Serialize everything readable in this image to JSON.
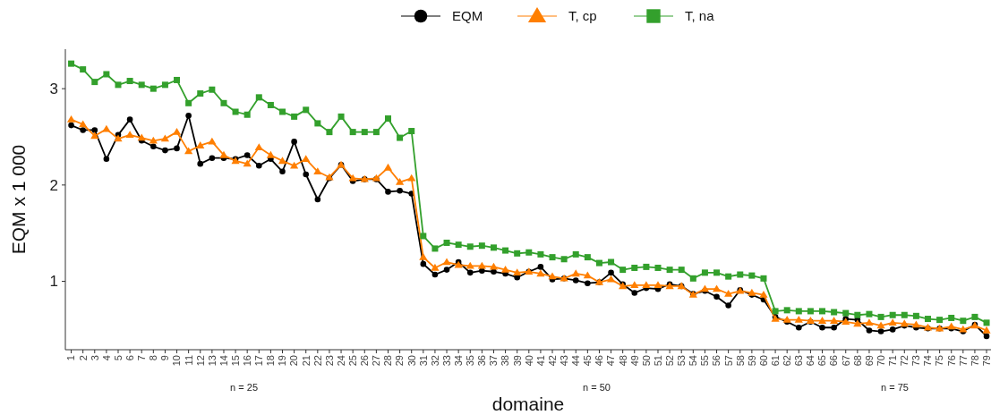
{
  "chart_data": {
    "type": "line",
    "xlabel": "domaine",
    "ylabel": "EQM x 1 000",
    "categories": [
      "1",
      "2",
      "3",
      "4",
      "5",
      "6",
      "7",
      "8",
      "9",
      "10",
      "11",
      "12",
      "13",
      "14",
      "15",
      "16",
      "17",
      "18",
      "19",
      "20",
      "21",
      "22",
      "23",
      "24",
      "25",
      "26",
      "27",
      "28",
      "29",
      "30",
      "31",
      "32",
      "33",
      "34",
      "35",
      "36",
      "37",
      "38",
      "39",
      "40",
      "41",
      "42",
      "43",
      "44",
      "45",
      "46",
      "47",
      "48",
      "49",
      "50",
      "51",
      "52",
      "53",
      "54",
      "55",
      "56",
      "57",
      "58",
      "59",
      "60",
      "61",
      "62",
      "63",
      "64",
      "65",
      "66",
      "67",
      "68",
      "69",
      "70",
      "71",
      "72",
      "73",
      "74",
      "75",
      "76",
      "77",
      "78",
      "79"
    ],
    "series": [
      {
        "name": "EQM",
        "color": "#000000",
        "marker": "circle",
        "values": [
          2.62,
          2.57,
          2.57,
          2.27,
          2.52,
          2.68,
          2.46,
          2.4,
          2.36,
          2.38,
          2.72,
          2.22,
          2.28,
          2.28,
          2.27,
          2.31,
          2.2,
          2.27,
          2.14,
          2.45,
          2.11,
          1.85,
          2.07,
          2.21,
          2.04,
          2.06,
          2.06,
          1.93,
          1.94,
          1.91,
          1.18,
          1.07,
          1.12,
          1.2,
          1.09,
          1.11,
          1.1,
          1.08,
          1.04,
          1.1,
          1.15,
          1.02,
          1.03,
          1.01,
          0.98,
          0.99,
          1.09,
          0.97,
          0.88,
          0.93,
          0.92,
          0.97,
          0.95,
          0.87,
          0.9,
          0.84,
          0.75,
          0.91,
          0.86,
          0.81,
          0.63,
          0.58,
          0.52,
          0.58,
          0.52,
          0.52,
          0.61,
          0.6,
          0.49,
          0.48,
          0.5,
          0.54,
          0.52,
          0.51,
          0.51,
          0.51,
          0.48,
          0.55,
          0.43
        ]
      },
      {
        "name": "T, cp",
        "color": "#ff7f00",
        "marker": "triangle",
        "values": [
          2.68,
          2.63,
          2.51,
          2.58,
          2.48,
          2.52,
          2.49,
          2.46,
          2.48,
          2.55,
          2.35,
          2.41,
          2.45,
          2.31,
          2.25,
          2.22,
          2.39,
          2.31,
          2.25,
          2.2,
          2.27,
          2.14,
          2.08,
          2.21,
          2.07,
          2.06,
          2.07,
          2.18,
          2.03,
          2.07,
          1.25,
          1.14,
          1.2,
          1.17,
          1.16,
          1.16,
          1.15,
          1.12,
          1.09,
          1.1,
          1.08,
          1.05,
          1.03,
          1.08,
          1.06,
          0.99,
          1.02,
          0.95,
          0.96,
          0.96,
          0.96,
          0.95,
          0.95,
          0.86,
          0.92,
          0.92,
          0.87,
          0.9,
          0.88,
          0.86,
          0.61,
          0.6,
          0.6,
          0.59,
          0.59,
          0.59,
          0.58,
          0.56,
          0.57,
          0.54,
          0.57,
          0.56,
          0.55,
          0.52,
          0.51,
          0.53,
          0.5,
          0.54,
          0.49
        ]
      },
      {
        "name": "T, na",
        "color": "#33a02c",
        "marker": "square",
        "values": [
          3.26,
          3.2,
          3.07,
          3.15,
          3.04,
          3.08,
          3.04,
          3.0,
          3.04,
          3.09,
          2.85,
          2.95,
          2.99,
          2.85,
          2.76,
          2.73,
          2.91,
          2.83,
          2.76,
          2.71,
          2.78,
          2.64,
          2.55,
          2.71,
          2.55,
          2.55,
          2.55,
          2.69,
          2.49,
          2.56,
          1.47,
          1.34,
          1.4,
          1.38,
          1.36,
          1.37,
          1.35,
          1.32,
          1.29,
          1.3,
          1.28,
          1.25,
          1.23,
          1.28,
          1.25,
          1.19,
          1.2,
          1.12,
          1.14,
          1.15,
          1.14,
          1.12,
          1.12,
          1.03,
          1.09,
          1.09,
          1.05,
          1.07,
          1.06,
          1.03,
          0.69,
          0.7,
          0.69,
          0.69,
          0.69,
          0.68,
          0.67,
          0.65,
          0.66,
          0.63,
          0.65,
          0.65,
          0.64,
          0.61,
          0.6,
          0.62,
          0.59,
          0.63,
          0.57
        ]
      }
    ],
    "ylim": [
      0.29,
      3.41
    ],
    "yticks": [
      1,
      2,
      3
    ],
    "legend": "top",
    "line_style": "solid",
    "annotations": [
      "n = 25",
      "n = 50",
      "n = 75"
    ]
  }
}
